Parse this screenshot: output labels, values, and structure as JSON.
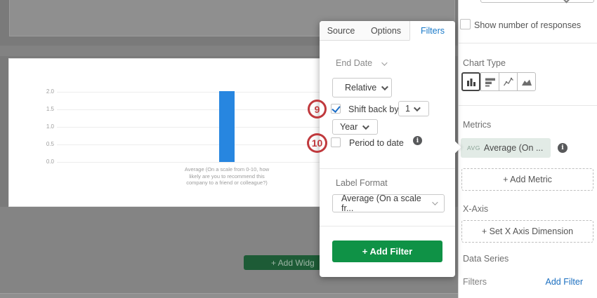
{
  "colors": {
    "accent_blue": "#1879c9",
    "link_blue": "#1b6fc0",
    "green": "#0f9246",
    "bar_blue": "#2786e0",
    "annotation_red": "#c0393d",
    "metric_pill_bg": "#e2ebe6",
    "check_blue": "#1d6fc8"
  },
  "chart_data": {
    "type": "bar",
    "categories": [
      "Average (On a scale from 0-10, how likely are you to recommend this company to a friend or colleague?)"
    ],
    "values": [
      2.0
    ],
    "ylim": [
      0,
      2.0
    ],
    "ytick_labels": [
      "2.0",
      "1.5",
      "1.0",
      "0.5",
      "0.0"
    ],
    "title": "",
    "xlabel": "",
    "ylabel": "",
    "grid": "horizontal",
    "legend": "none"
  },
  "popup": {
    "tabs": [
      {
        "label": "Source"
      },
      {
        "label": "Options"
      },
      {
        "label": "Filters"
      }
    ],
    "end_date_label": "End Date",
    "relative_value": "Relative",
    "shift_back_label": "Shift back by",
    "shift_back_count": "1",
    "shift_back_unit": "Year",
    "period_to_date_label": "Period to date",
    "label_format_label": "Label Format",
    "label_format_value": "Average (On a scale fr...",
    "add_filter_button": "+ Add Filter"
  },
  "annotations": {
    "step9": "9",
    "step10": "10"
  },
  "sidebar": {
    "show_responses_label": "Show number of responses",
    "chart_type_label": "Chart Type",
    "metrics_label": "Metrics",
    "metric_prefix": "AVG",
    "metric_label": "Average (On ...",
    "add_metric_button": "+ Add Metric",
    "x_axis_label": "X-Axis",
    "set_x_axis_button": "+ Set X Axis Dimension",
    "data_series_label": "Data Series",
    "filters_label": "Filters",
    "add_filter_link": "Add Filter"
  },
  "canvas": {
    "add_widget_label": "+ Add Widg"
  },
  "glyphs": {
    "info": "i"
  }
}
